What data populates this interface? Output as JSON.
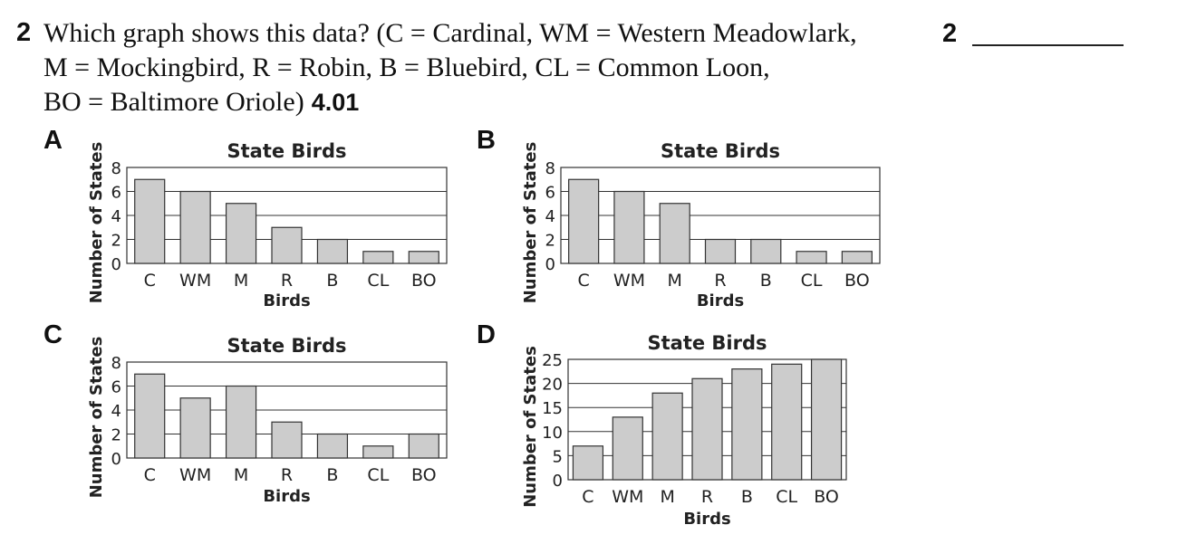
{
  "question": {
    "number": "2",
    "line1": "Which graph shows this data? (C = Cardinal, WM = Western Meadowlark,",
    "line2": "M = Mockingbird, R = Robin, B = Bluebird, CL = Common Loon,",
    "line3": "BO = Baltimore Oriole)",
    "standard": "4.01"
  },
  "answer": {
    "number": "2"
  },
  "options": {
    "a": "A",
    "b": "B",
    "c": "C",
    "d": "D"
  },
  "colors": {
    "bar_fill": "#cccccc",
    "bar_stroke": "#333333",
    "grid": "#333333"
  },
  "chart_data": [
    {
      "type": "bar",
      "option": "A",
      "title": "State Birds",
      "xlabel": "Birds",
      "ylabel": "Number of States",
      "categories": [
        "C",
        "WM",
        "M",
        "R",
        "B",
        "CL",
        "BO"
      ],
      "values": [
        7,
        6,
        5,
        3,
        2,
        1,
        1
      ],
      "ylim": [
        0,
        8
      ],
      "yticks": [
        0,
        2,
        4,
        6,
        8
      ]
    },
    {
      "type": "bar",
      "option": "B",
      "title": "State Birds",
      "xlabel": "Birds",
      "ylabel": "Number of States",
      "categories": [
        "C",
        "WM",
        "M",
        "R",
        "B",
        "CL",
        "BO"
      ],
      "values": [
        7,
        6,
        5,
        2,
        2,
        1,
        1
      ],
      "ylim": [
        0,
        8
      ],
      "yticks": [
        0,
        2,
        4,
        6,
        8
      ]
    },
    {
      "type": "bar",
      "option": "C",
      "title": "State Birds",
      "xlabel": "Birds",
      "ylabel": "Number of States",
      "categories": [
        "C",
        "WM",
        "M",
        "R",
        "B",
        "CL",
        "BO"
      ],
      "values": [
        7,
        5,
        6,
        3,
        2,
        1,
        2
      ],
      "ylim": [
        0,
        8
      ],
      "yticks": [
        0,
        2,
        4,
        6,
        8
      ]
    },
    {
      "type": "bar",
      "option": "D",
      "title": "State Birds",
      "xlabel": "Birds",
      "ylabel": "Number of States",
      "categories": [
        "C",
        "WM",
        "M",
        "R",
        "B",
        "CL",
        "BO"
      ],
      "values": [
        7,
        13,
        18,
        21,
        23,
        24,
        25
      ],
      "ylim": [
        0,
        25
      ],
      "yticks": [
        0,
        5,
        10,
        15,
        20,
        25
      ]
    }
  ]
}
